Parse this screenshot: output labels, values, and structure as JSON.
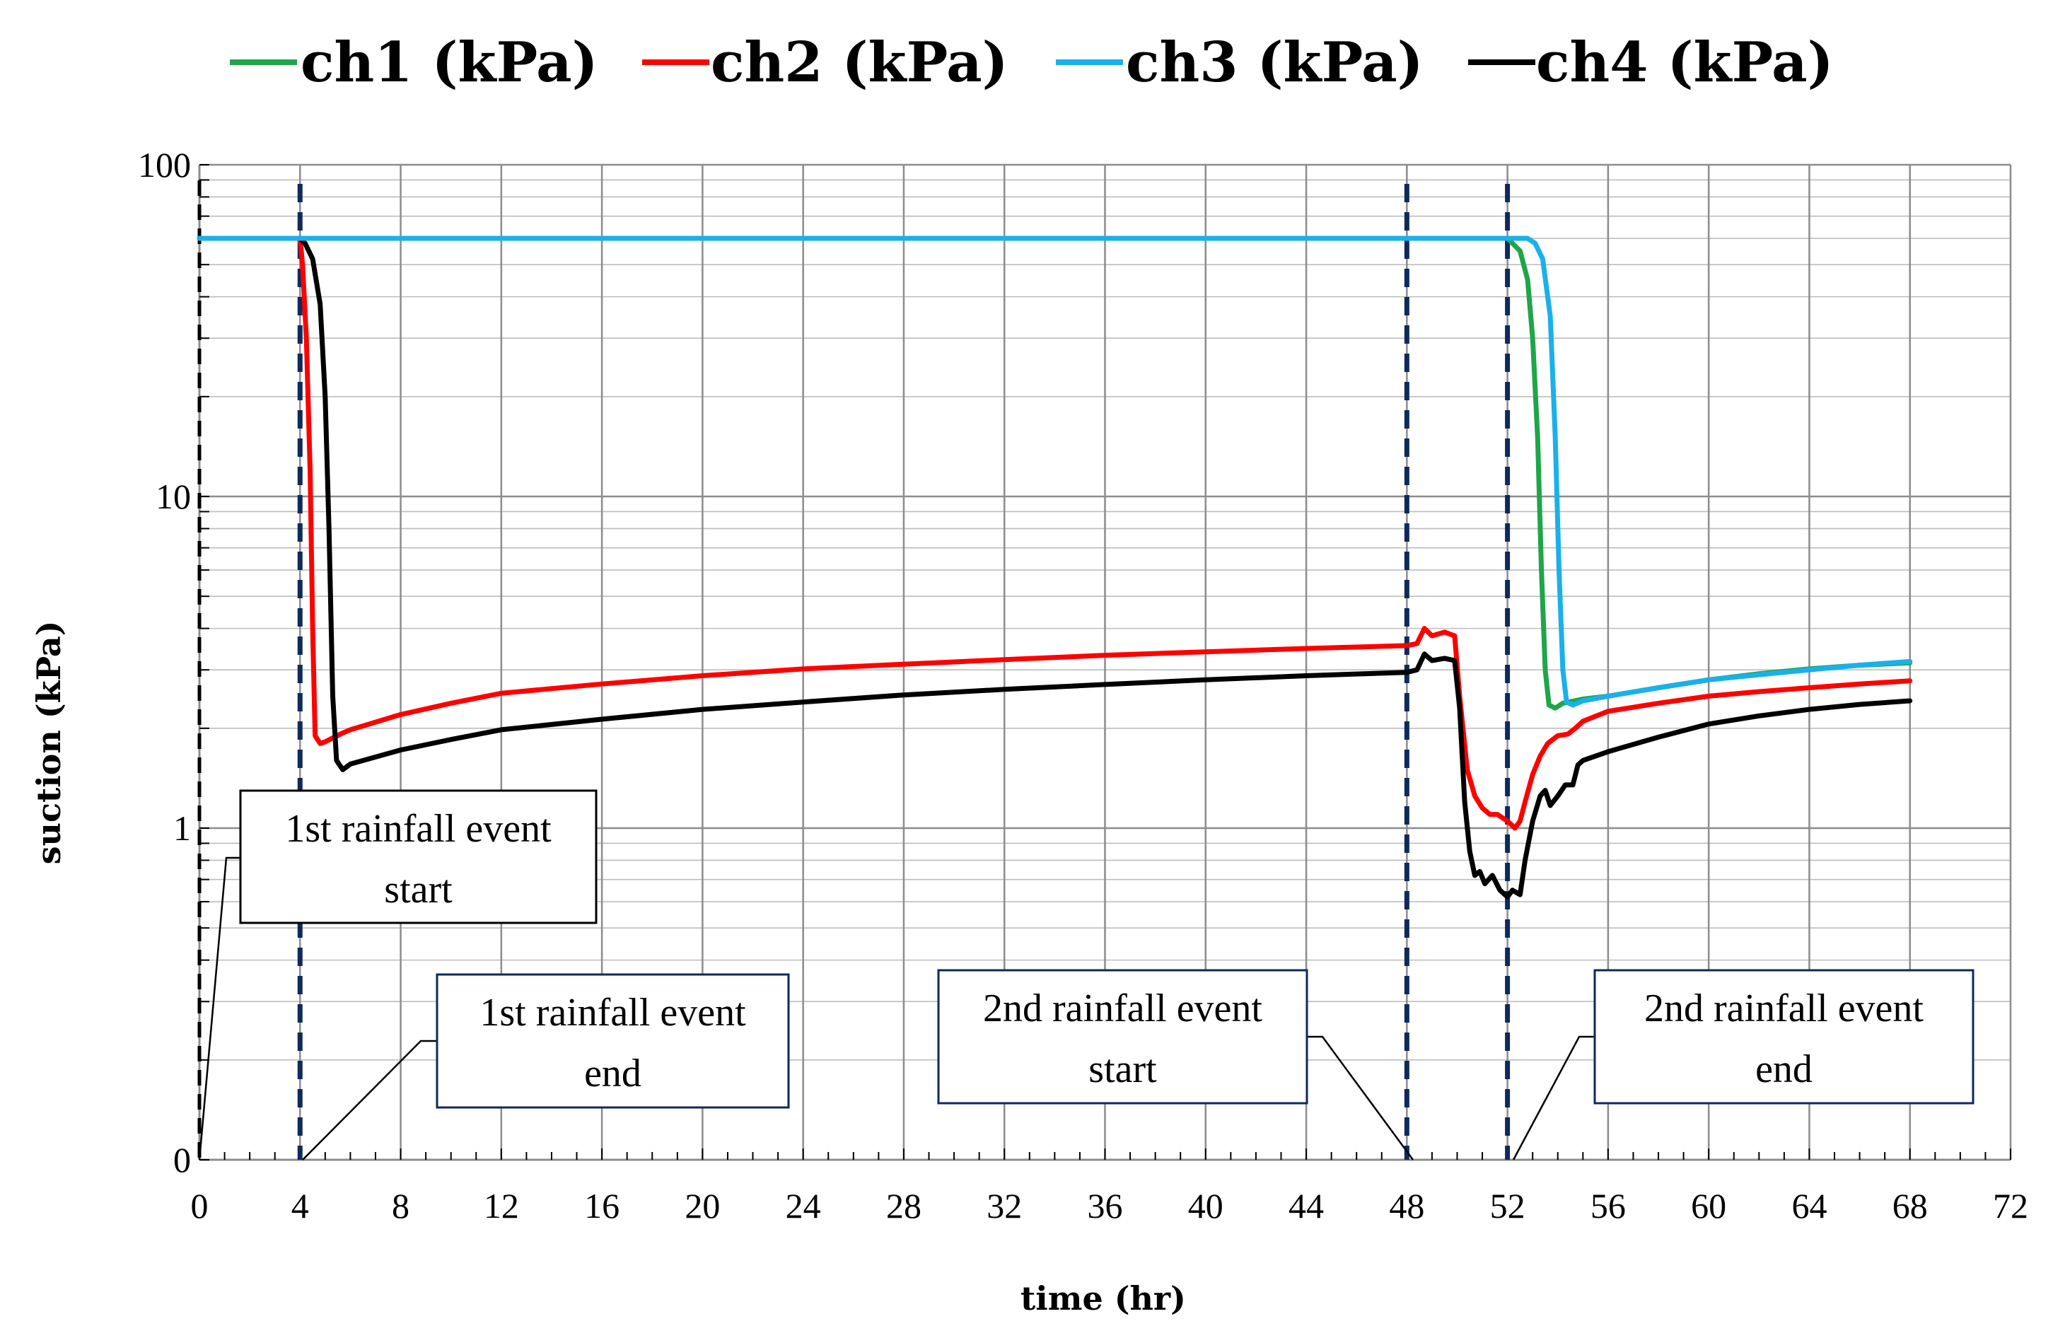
{
  "chart_data": {
    "type": "line",
    "xlabel": "time (hr)",
    "ylabel": "suction (kPa)",
    "xlim": [
      0,
      72
    ],
    "x_ticks": [
      0,
      4,
      8,
      12,
      16,
      20,
      24,
      28,
      32,
      36,
      40,
      44,
      48,
      52,
      56,
      60,
      64,
      68,
      72
    ],
    "x_tick_labels": [
      "0",
      "4",
      "8",
      "12",
      "16",
      "20",
      "24",
      "28",
      "32",
      "36",
      "40",
      "44",
      "48",
      "52",
      "56",
      "60",
      "64",
      "68",
      "72"
    ],
    "y_scale": "log",
    "y_tick_labels": [
      "100",
      "10",
      "1",
      "0"
    ],
    "grid": "on",
    "legend_position": "top",
    "event_lines_x": [
      4,
      48,
      52
    ],
    "series": [
      {
        "name": "ch1 (kPa)",
        "color": "#1fa54a",
        "points": [
          [
            0,
            60
          ],
          [
            4,
            60
          ],
          [
            48,
            60
          ],
          [
            52,
            60
          ],
          [
            52.5,
            55
          ],
          [
            52.8,
            45
          ],
          [
            53,
            30
          ],
          [
            53.2,
            15
          ],
          [
            53.35,
            6
          ],
          [
            53.5,
            3
          ],
          [
            53.65,
            2.35
          ],
          [
            53.9,
            2.3
          ],
          [
            54.2,
            2.38
          ],
          [
            55,
            2.45
          ],
          [
            56,
            2.5
          ],
          [
            58,
            2.65
          ],
          [
            60,
            2.8
          ],
          [
            62,
            2.92
          ],
          [
            64,
            3.02
          ],
          [
            66,
            3.1
          ],
          [
            68,
            3.15
          ]
        ]
      },
      {
        "name": "ch2 (kPa)",
        "color": "#ff0000",
        "points": [
          [
            0,
            60
          ],
          [
            4,
            60
          ],
          [
            4.1,
            50
          ],
          [
            4.25,
            30
          ],
          [
            4.4,
            12
          ],
          [
            4.5,
            4
          ],
          [
            4.6,
            1.9
          ],
          [
            4.8,
            1.8
          ],
          [
            5,
            1.82
          ],
          [
            5.3,
            1.87
          ],
          [
            5.6,
            1.92
          ],
          [
            6,
            1.98
          ],
          [
            8,
            2.2
          ],
          [
            10,
            2.38
          ],
          [
            12,
            2.55
          ],
          [
            16,
            2.72
          ],
          [
            20,
            2.88
          ],
          [
            24,
            3.02
          ],
          [
            28,
            3.12
          ],
          [
            32,
            3.22
          ],
          [
            36,
            3.32
          ],
          [
            40,
            3.4
          ],
          [
            44,
            3.48
          ],
          [
            48,
            3.55
          ],
          [
            48.4,
            3.6
          ],
          [
            48.7,
            4.0
          ],
          [
            49,
            3.8
          ],
          [
            49.5,
            3.9
          ],
          [
            49.9,
            3.8
          ],
          [
            50.1,
            2.5
          ],
          [
            50.4,
            1.5
          ],
          [
            50.7,
            1.25
          ],
          [
            51,
            1.15
          ],
          [
            51.3,
            1.1
          ],
          [
            51.6,
            1.1
          ],
          [
            52,
            1.05
          ],
          [
            52.3,
            1.0
          ],
          [
            52.5,
            1.05
          ],
          [
            52.7,
            1.2
          ],
          [
            53,
            1.45
          ],
          [
            53.3,
            1.65
          ],
          [
            53.6,
            1.8
          ],
          [
            54,
            1.9
          ],
          [
            54.4,
            1.92
          ],
          [
            54.7,
            2.0
          ],
          [
            55,
            2.1
          ],
          [
            56,
            2.25
          ],
          [
            58,
            2.38
          ],
          [
            60,
            2.5
          ],
          [
            62,
            2.58
          ],
          [
            64,
            2.65
          ],
          [
            66,
            2.72
          ],
          [
            68,
            2.78
          ]
        ]
      },
      {
        "name": "ch3 (kPa)",
        "color": "#1ab0ea",
        "points": [
          [
            0,
            60
          ],
          [
            4,
            60
          ],
          [
            48,
            60
          ],
          [
            52,
            60
          ],
          [
            52.8,
            60
          ],
          [
            53.1,
            58
          ],
          [
            53.4,
            52
          ],
          [
            53.7,
            35
          ],
          [
            53.9,
            15
          ],
          [
            54.05,
            6
          ],
          [
            54.2,
            3
          ],
          [
            54.35,
            2.4
          ],
          [
            54.6,
            2.35
          ],
          [
            55,
            2.42
          ],
          [
            56,
            2.5
          ],
          [
            58,
            2.65
          ],
          [
            60,
            2.8
          ],
          [
            62,
            2.9
          ],
          [
            64,
            3.0
          ],
          [
            66,
            3.1
          ],
          [
            68,
            3.18
          ]
        ]
      },
      {
        "name": "ch4 (kPa)",
        "color": "#000000",
        "points": [
          [
            0,
            60
          ],
          [
            4,
            60
          ],
          [
            4.2,
            58
          ],
          [
            4.5,
            52
          ],
          [
            4.8,
            38
          ],
          [
            5.0,
            20
          ],
          [
            5.15,
            8
          ],
          [
            5.3,
            2.5
          ],
          [
            5.45,
            1.6
          ],
          [
            5.7,
            1.5
          ],
          [
            6,
            1.56
          ],
          [
            8,
            1.72
          ],
          [
            10,
            1.85
          ],
          [
            12,
            1.98
          ],
          [
            16,
            2.13
          ],
          [
            20,
            2.28
          ],
          [
            24,
            2.4
          ],
          [
            28,
            2.52
          ],
          [
            32,
            2.62
          ],
          [
            36,
            2.71
          ],
          [
            40,
            2.8
          ],
          [
            44,
            2.88
          ],
          [
            48,
            2.95
          ],
          [
            48.4,
            3.0
          ],
          [
            48.7,
            3.35
          ],
          [
            49,
            3.2
          ],
          [
            49.5,
            3.25
          ],
          [
            49.9,
            3.2
          ],
          [
            50.1,
            2.3
          ],
          [
            50.3,
            1.2
          ],
          [
            50.5,
            0.85
          ],
          [
            50.7,
            0.72
          ],
          [
            50.9,
            0.74
          ],
          [
            51.1,
            0.68
          ],
          [
            51.4,
            0.72
          ],
          [
            51.7,
            0.65
          ],
          [
            52,
            0.62
          ],
          [
            52.2,
            0.65
          ],
          [
            52.5,
            0.63
          ],
          [
            52.7,
            0.8
          ],
          [
            53,
            1.05
          ],
          [
            53.3,
            1.25
          ],
          [
            53.5,
            1.3
          ],
          [
            53.7,
            1.17
          ],
          [
            54,
            1.25
          ],
          [
            54.3,
            1.35
          ],
          [
            54.6,
            1.35
          ],
          [
            54.8,
            1.55
          ],
          [
            55,
            1.6
          ],
          [
            56,
            1.7
          ],
          [
            58,
            1.88
          ],
          [
            60,
            2.06
          ],
          [
            62,
            2.18
          ],
          [
            64,
            2.28
          ],
          [
            66,
            2.36
          ],
          [
            68,
            2.42
          ]
        ]
      }
    ],
    "annotations": [
      {
        "id": "anno-1",
        "lines": [
          "1st rainfall event",
          "start"
        ],
        "border": "#000000"
      },
      {
        "id": "anno-2",
        "lines": [
          "1st rainfall event",
          "end"
        ],
        "border": "#0d2a5a"
      },
      {
        "id": "anno-3",
        "lines": [
          "2nd rainfall event",
          "start"
        ],
        "border": "#0d2a5a"
      },
      {
        "id": "anno-4",
        "lines": [
          "2nd rainfall event",
          "end"
        ],
        "border": "#0d2a5a"
      }
    ]
  }
}
